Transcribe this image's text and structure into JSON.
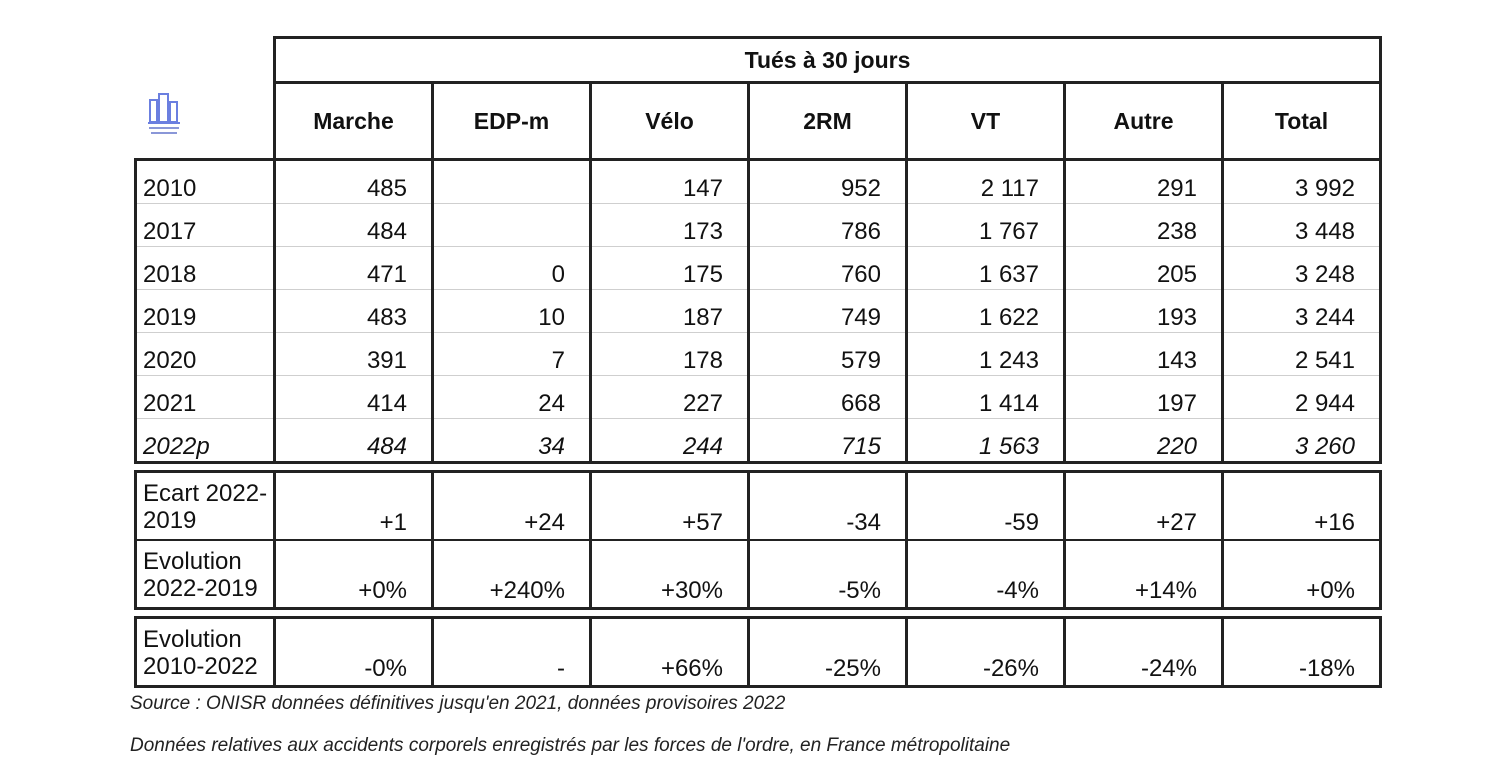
{
  "table": {
    "title": "Tués à 30 jours",
    "columns": [
      "Marche",
      "EDP-m",
      "Vélo",
      "2RM",
      "VT",
      "Autre",
      "Total"
    ],
    "rows": [
      {
        "label": "2010",
        "values": [
          "485",
          "",
          "147",
          "952",
          "2 117",
          "291",
          "3 992"
        ]
      },
      {
        "label": "2017",
        "values": [
          "484",
          "",
          "173",
          "786",
          "1 767",
          "238",
          "3 448"
        ]
      },
      {
        "label": "2018",
        "values": [
          "471",
          "0",
          "175",
          "760",
          "1 637",
          "205",
          "3 248"
        ]
      },
      {
        "label": "2019",
        "values": [
          "483",
          "10",
          "187",
          "749",
          "1 622",
          "193",
          "3 244"
        ]
      },
      {
        "label": "2020",
        "values": [
          "391",
          "7",
          "178",
          "579",
          "1 243",
          "143",
          "2 541"
        ]
      },
      {
        "label": "2021",
        "values": [
          "414",
          "24",
          "227",
          "668",
          "1 414",
          "197",
          "2 944"
        ]
      },
      {
        "label": "2022p",
        "values": [
          "484",
          "34",
          "244",
          "715",
          "1 563",
          "220",
          "3 260"
        ]
      }
    ],
    "stats": [
      {
        "label": "Ecart 2022-2019",
        "values": [
          "+1",
          "+24",
          "+57",
          "-34",
          "-59",
          "+27",
          "+16"
        ]
      },
      {
        "label": "Evolution 2022-2019",
        "values": [
          "+0%",
          "+240%",
          "+30%",
          "-5%",
          "-4%",
          "+14%",
          "+0%"
        ]
      },
      {
        "label": "Evolution 2010-2022",
        "values": [
          "-0%",
          "-",
          "+66%",
          "-25%",
          "-26%",
          "-24%",
          "-18%"
        ]
      }
    ]
  },
  "notes": {
    "source": "Source : ONISR données définitives jusqu'en 2021, données provisoires 2022",
    "scope": "Données relatives aux accidents corporels enregistrés par les forces de l'ordre, en France métropolitaine"
  },
  "logo": {
    "icon": "building-logo-icon",
    "color": "#5a6fd6"
  }
}
